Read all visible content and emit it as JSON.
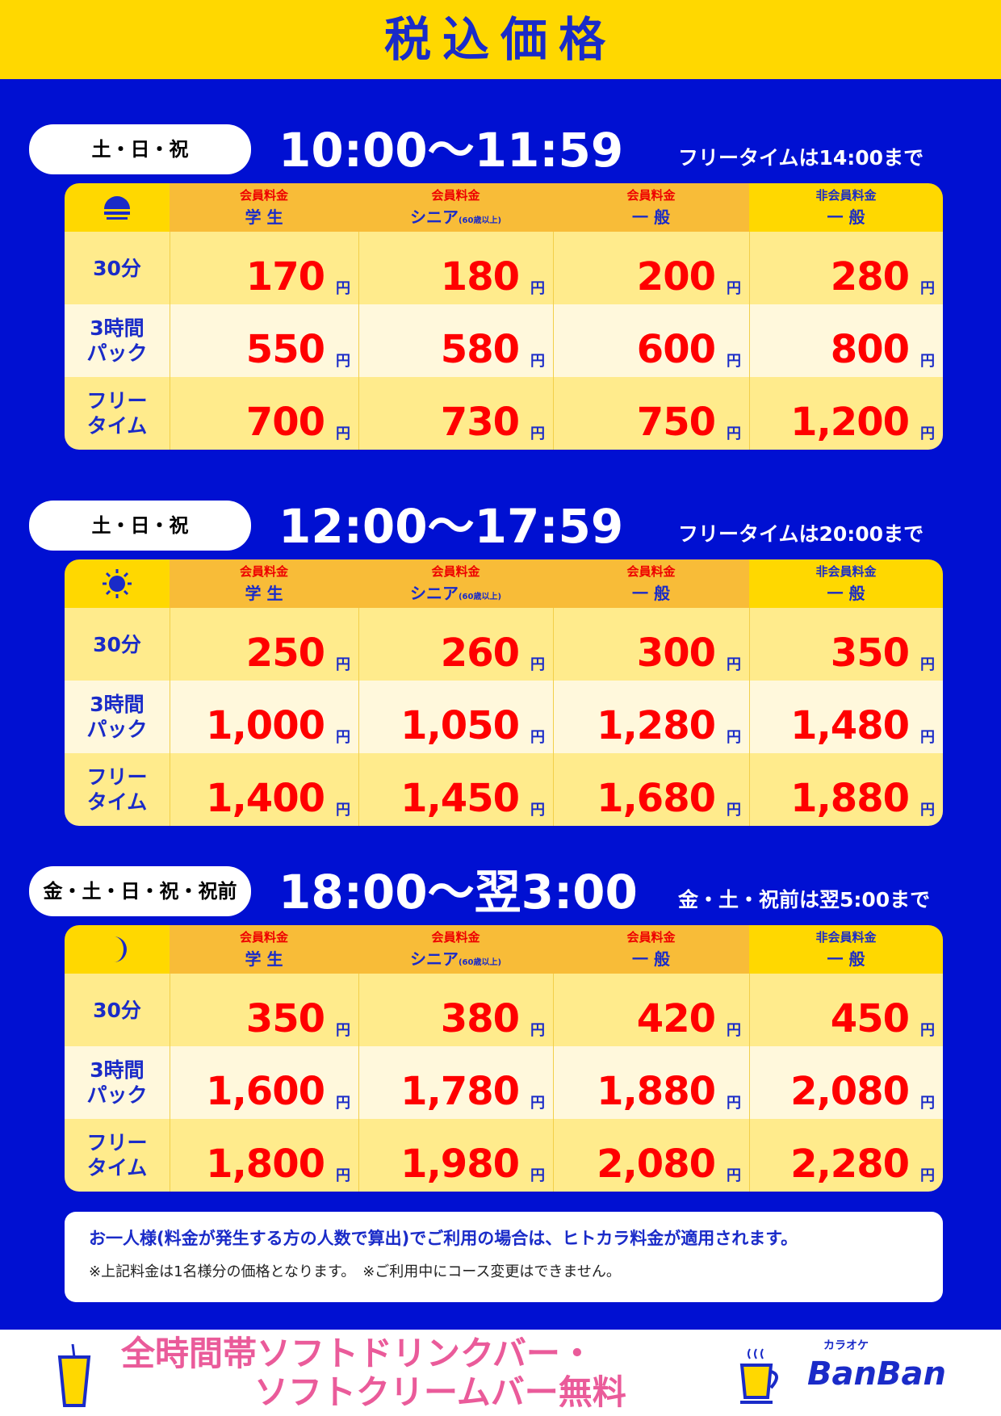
{
  "title": "税込価格",
  "columns": [
    {
      "top": "会員料金",
      "bottom": "学 生",
      "note": ""
    },
    {
      "top": "会員料金",
      "bottom": "シニア",
      "note": "(60歳以上)"
    },
    {
      "top": "会員料金",
      "bottom": "一 般",
      "note": ""
    },
    {
      "top": "非会員料金",
      "bottom": "一 般",
      "note": ""
    }
  ],
  "row_labels": [
    "30分",
    "3時間\nパック",
    "フリー\nタイム"
  ],
  "yen": "円",
  "sections": [
    {
      "days": "土・日・祝",
      "time": "10:00〜11:59",
      "note": "フリータイムは14:00まで",
      "icon": "sunrise-icon",
      "rows": [
        [
          "170",
          "180",
          "200",
          "280"
        ],
        [
          "550",
          "580",
          "600",
          "800"
        ],
        [
          "700",
          "730",
          "750",
          "1,200"
        ]
      ]
    },
    {
      "days": "土・日・祝",
      "time": "12:00〜17:59",
      "note": "フリータイムは20:00まで",
      "icon": "sun-icon",
      "rows": [
        [
          "250",
          "260",
          "300",
          "350"
        ],
        [
          "1,000",
          "1,050",
          "1,280",
          "1,480"
        ],
        [
          "1,400",
          "1,450",
          "1,680",
          "1,880"
        ]
      ]
    },
    {
      "days": "金・土・日・祝・祝前",
      "time": "18:00〜翌3:00",
      "note": "金・土・祝前は翌5:00まで",
      "icon": "moon-icon",
      "rows": [
        [
          "350",
          "380",
          "420",
          "450"
        ],
        [
          "1,600",
          "1,780",
          "1,880",
          "2,080"
        ],
        [
          "1,800",
          "1,980",
          "2,080",
          "2,280"
        ]
      ]
    }
  ],
  "info": {
    "line1": "お一人様(料金が発生する方の人数で算出)でご利用の場合は、ヒトカラ料金が適用されます。",
    "line2": "※上記料金は1名様分の価格となります。　※ご利用中にコース変更はできません。"
  },
  "promo": {
    "line1": "全時間帯ソフトドリンクバー・",
    "line2": "ソフトクリームバー無料"
  },
  "logo": {
    "kana": "カラオケ",
    "name": "BanBan"
  },
  "colors": {
    "background": "#0010d2",
    "yellow": "#ffd800",
    "price": "#ff0000",
    "promo": "#ea5b9a"
  }
}
